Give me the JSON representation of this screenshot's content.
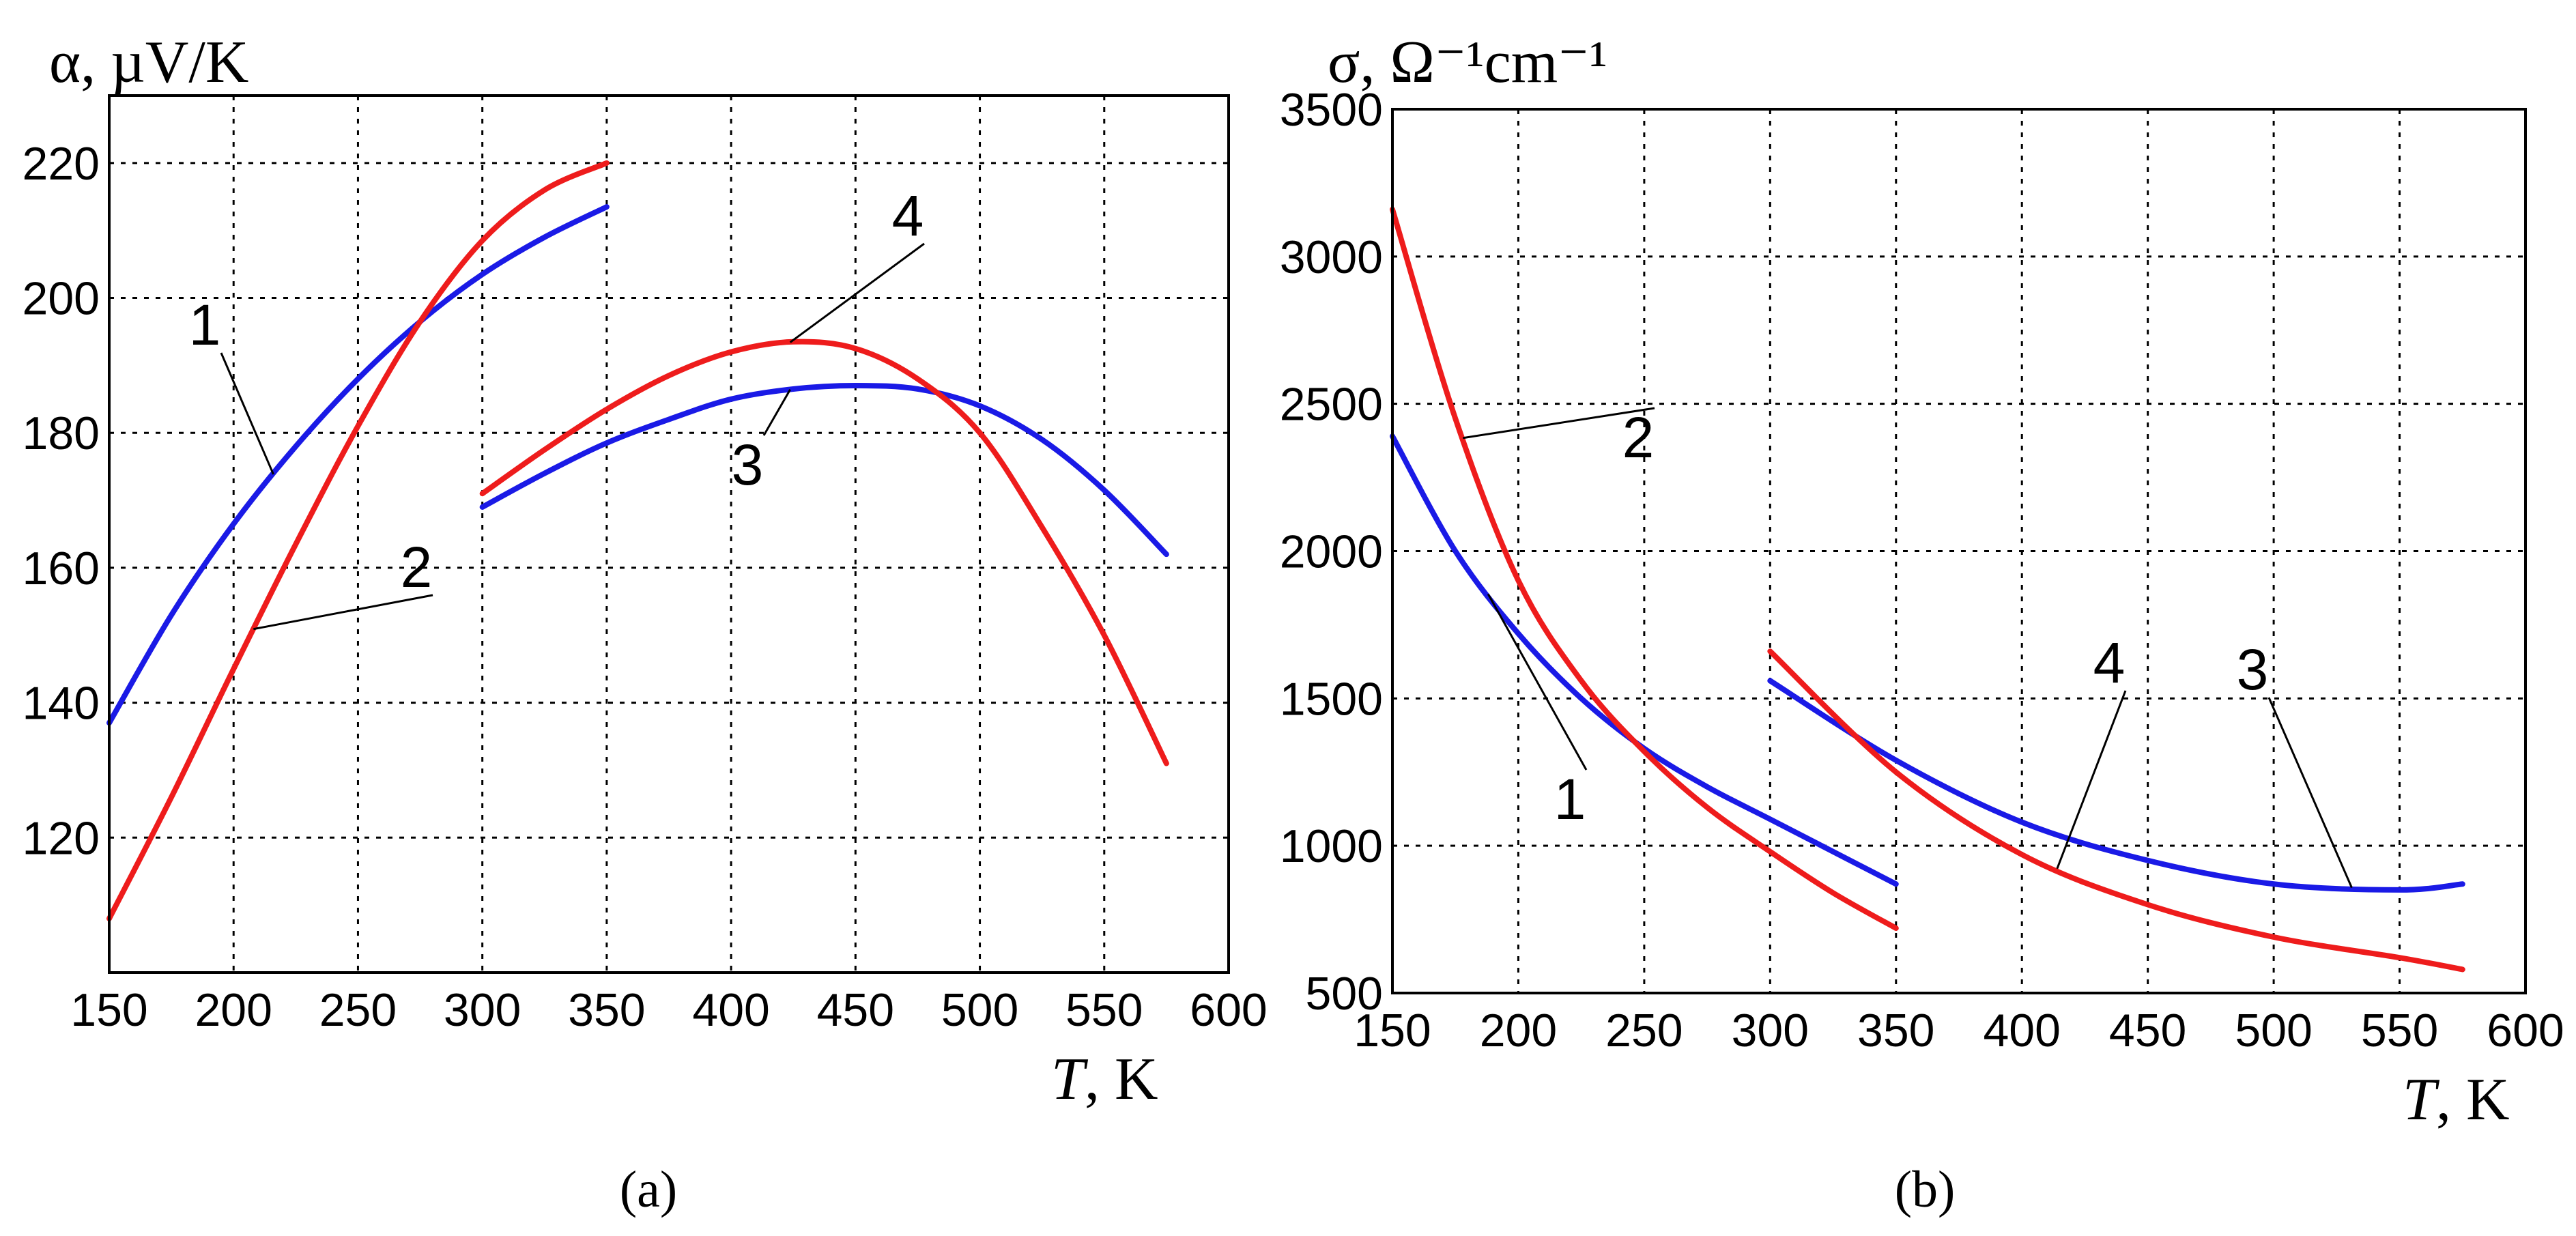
{
  "colors": {
    "red": "#ee1c1c",
    "blue": "#1a1ae6"
  },
  "chart_data": [
    {
      "type": "line",
      "panel_label": "(a)",
      "title_prefix": "α",
      "ylabel_unit": "µV/K",
      "xlabel_var": "T",
      "xlabel_unit": "K",
      "xlim": [
        150,
        600
      ],
      "ylim": [
        100,
        230
      ],
      "xticks": [
        150,
        200,
        250,
        300,
        350,
        400,
        450,
        500,
        550,
        600
      ],
      "yticks": [
        120,
        140,
        160,
        180,
        200,
        220
      ],
      "grid": true,
      "series": [
        {
          "name": "1",
          "color": "blue",
          "x": [
            150,
            175,
            200,
            225,
            250,
            275,
            300,
            325,
            350
          ],
          "y": [
            137,
            153,
            166.5,
            178,
            188,
            196.5,
            203.5,
            209,
            213.5
          ]
        },
        {
          "name": "2",
          "color": "red",
          "x": [
            150,
            175,
            200,
            225,
            250,
            275,
            300,
            325,
            350
          ],
          "y": [
            108,
            126,
            145,
            163.5,
            181,
            196.5,
            208.5,
            216,
            220
          ]
        },
        {
          "name": "3",
          "color": "blue",
          "x": [
            300,
            325,
            350,
            375,
            400,
            425,
            450,
            475,
            500,
            525,
            550,
            575
          ],
          "y": [
            169,
            174,
            178.5,
            182,
            185,
            186.5,
            187,
            186.5,
            184,
            179,
            171.5,
            162
          ]
        },
        {
          "name": "4",
          "color": "red",
          "x": [
            300,
            325,
            350,
            375,
            400,
            425,
            450,
            475,
            500,
            525,
            550,
            575
          ],
          "y": [
            171,
            177.5,
            183.5,
            188.5,
            192,
            193.5,
            192.5,
            188,
            180,
            166,
            150,
            131
          ]
        }
      ],
      "labels": [
        {
          "text": "1",
          "series": "1"
        },
        {
          "text": "2",
          "series": "2"
        },
        {
          "text": "3",
          "series": "3"
        },
        {
          "text": "4",
          "series": "4"
        }
      ]
    },
    {
      "type": "line",
      "panel_label": "(b)",
      "title_prefix": "σ",
      "ylabel_unit": "Ω⁻¹cm⁻¹",
      "xlabel_var": "T",
      "xlabel_unit": "K",
      "xlim": [
        150,
        600
      ],
      "ylim": [
        500,
        3500
      ],
      "xticks": [
        150,
        200,
        250,
        300,
        350,
        400,
        450,
        500,
        550,
        600
      ],
      "yticks": [
        500,
        1000,
        1500,
        2000,
        2500,
        3000,
        3500
      ],
      "grid": true,
      "series": [
        {
          "name": "1",
          "color": "blue",
          "x": [
            150,
            175,
            200,
            225,
            250,
            275,
            300,
            325,
            350
          ],
          "y": [
            2390,
            2000,
            1720,
            1500,
            1330,
            1200,
            1090,
            980,
            870
          ]
        },
        {
          "name": "2",
          "color": "red",
          "x": [
            150,
            175,
            200,
            225,
            250,
            275,
            300,
            325,
            350
          ],
          "y": [
            3160,
            2450,
            1900,
            1560,
            1320,
            1130,
            980,
            840,
            720
          ]
        },
        {
          "name": "3",
          "color": "blue",
          "x": [
            300,
            350,
            400,
            450,
            500,
            550,
            575
          ],
          "y": [
            1560,
            1290,
            1080,
            950,
            870,
            850,
            870
          ]
        },
        {
          "name": "4",
          "color": "red",
          "x": [
            300,
            350,
            400,
            450,
            500,
            550,
            575
          ],
          "y": [
            1660,
            1250,
            970,
            800,
            690,
            620,
            580
          ]
        }
      ],
      "labels": [
        {
          "text": "1",
          "series": "1"
        },
        {
          "text": "2",
          "series": "2"
        },
        {
          "text": "3",
          "series": "3"
        },
        {
          "text": "4",
          "series": "4"
        }
      ]
    }
  ]
}
